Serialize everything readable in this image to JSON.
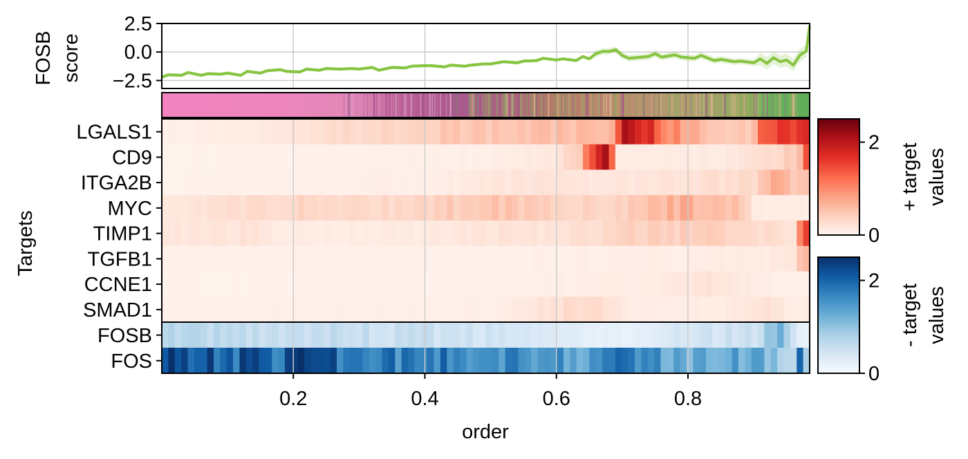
{
  "chart_data": {
    "type": "heatmap",
    "score_panel": {
      "type": "line",
      "ylabel_line1": "FOSB",
      "ylabel_line2": "score",
      "y_ticks": [
        "2.5",
        "0.0",
        "−2.5"
      ],
      "y_tick_values": [
        2.5,
        0.0,
        -2.5
      ],
      "ylim": [
        -3.2,
        2.5
      ],
      "xlim": [
        0.0,
        0.985
      ],
      "grid": true,
      "line_color": "#86c440",
      "points": [
        [
          0.0,
          -2.2
        ],
        [
          0.01,
          -2.0
        ],
        [
          0.03,
          -2.05
        ],
        [
          0.04,
          -1.8
        ],
        [
          0.06,
          -2.05
        ],
        [
          0.07,
          -1.9
        ],
        [
          0.09,
          -1.95
        ],
        [
          0.1,
          -1.85
        ],
        [
          0.12,
          -2.05
        ],
        [
          0.13,
          -1.7
        ],
        [
          0.15,
          -1.85
        ],
        [
          0.16,
          -1.65
        ],
        [
          0.18,
          -1.55
        ],
        [
          0.19,
          -1.7
        ],
        [
          0.21,
          -1.75
        ],
        [
          0.22,
          -1.5
        ],
        [
          0.24,
          -1.6
        ],
        [
          0.25,
          -1.45
        ],
        [
          0.27,
          -1.5
        ],
        [
          0.29,
          -1.45
        ],
        [
          0.3,
          -1.5
        ],
        [
          0.32,
          -1.35
        ],
        [
          0.33,
          -1.6
        ],
        [
          0.35,
          -1.35
        ],
        [
          0.37,
          -1.4
        ],
        [
          0.38,
          -1.25
        ],
        [
          0.4,
          -1.2
        ],
        [
          0.41,
          -1.2
        ],
        [
          0.43,
          -1.3
        ],
        [
          0.44,
          -1.15
        ],
        [
          0.46,
          -1.25
        ],
        [
          0.47,
          -1.15
        ],
        [
          0.49,
          -1.05
        ],
        [
          0.5,
          -1.05
        ],
        [
          0.52,
          -0.85
        ],
        [
          0.54,
          -0.95
        ],
        [
          0.55,
          -0.8
        ],
        [
          0.57,
          -0.75
        ],
        [
          0.58,
          -0.55
        ],
        [
          0.6,
          -0.7
        ],
        [
          0.61,
          -0.6
        ],
        [
          0.63,
          -0.75
        ],
        [
          0.64,
          -0.4
        ],
        [
          0.65,
          -0.6
        ],
        [
          0.66,
          -0.15
        ],
        [
          0.67,
          0.05
        ],
        [
          0.68,
          0.05
        ],
        [
          0.69,
          0.2
        ],
        [
          0.7,
          -0.3
        ],
        [
          0.71,
          -0.55
        ],
        [
          0.72,
          -0.5
        ],
        [
          0.74,
          -0.4
        ],
        [
          0.75,
          -0.15
        ],
        [
          0.76,
          -0.45
        ],
        [
          0.78,
          -0.25
        ],
        [
          0.79,
          -0.45
        ],
        [
          0.81,
          -0.55
        ],
        [
          0.82,
          -0.3
        ],
        [
          0.84,
          -0.75
        ],
        [
          0.85,
          -0.65
        ],
        [
          0.87,
          -0.85
        ],
        [
          0.88,
          -0.8
        ],
        [
          0.9,
          -0.95
        ],
        [
          0.91,
          -0.6
        ],
        [
          0.92,
          -1.0
        ],
        [
          0.93,
          -0.5
        ],
        [
          0.94,
          -0.85
        ],
        [
          0.95,
          -0.7
        ],
        [
          0.96,
          -1.15
        ],
        [
          0.97,
          -0.3
        ],
        [
          0.98,
          0.1
        ],
        [
          0.985,
          2.3
        ]
      ]
    },
    "color_strip": {
      "stops": [
        {
          "at": 0.0,
          "color": "#f384c0"
        },
        {
          "at": 0.18,
          "color": "#ee86bd"
        },
        {
          "at": 0.3,
          "color": "#e088b7"
        },
        {
          "at": 0.38,
          "color": "#b85c92"
        },
        {
          "at": 0.48,
          "color": "#a65a8a"
        },
        {
          "at": 0.6,
          "color": "#b27a6a"
        },
        {
          "at": 0.72,
          "color": "#c08a72"
        },
        {
          "at": 0.82,
          "color": "#a8a070"
        },
        {
          "at": 0.9,
          "color": "#95a85e"
        },
        {
          "at": 0.93,
          "color": "#6fb15f"
        },
        {
          "at": 1.0,
          "color": "#5fae5a"
        }
      ]
    },
    "heatmap": {
      "ylabel": "Targets",
      "xlabel": "order",
      "x_ticks": [
        "0.2",
        "0.4",
        "0.6",
        "0.8"
      ],
      "x_tick_values": [
        0.2,
        0.4,
        0.6,
        0.8
      ],
      "xlim": [
        0.0,
        0.985
      ],
      "grid": true,
      "positive_targets": [
        {
          "name": "LGALS1",
          "profile": [
            [
              0.0,
              0.05
            ],
            [
              0.15,
              0.12
            ],
            [
              0.28,
              0.3
            ],
            [
              0.4,
              0.45
            ],
            [
              0.55,
              0.5
            ],
            [
              0.62,
              0.6
            ],
            [
              0.68,
              0.45
            ],
            [
              0.7,
              1.9
            ],
            [
              0.74,
              1.7
            ],
            [
              0.76,
              1.2
            ],
            [
              0.8,
              0.7
            ],
            [
              0.86,
              0.5
            ],
            [
              0.9,
              0.45
            ],
            [
              0.92,
              1.6
            ],
            [
              0.95,
              1.5
            ],
            [
              0.97,
              1.9
            ],
            [
              0.985,
              2.0
            ]
          ]
        },
        {
          "name": "CD9",
          "profile": [
            [
              0.0,
              0.03
            ],
            [
              0.3,
              0.05
            ],
            [
              0.5,
              0.07
            ],
            [
              0.6,
              0.15
            ],
            [
              0.64,
              0.5
            ],
            [
              0.65,
              1.6
            ],
            [
              0.68,
              1.9
            ],
            [
              0.69,
              0.1
            ],
            [
              0.85,
              0.12
            ],
            [
              0.92,
              0.25
            ],
            [
              0.97,
              0.5
            ],
            [
              0.985,
              2.1
            ]
          ]
        },
        {
          "name": "ITGA2B",
          "profile": [
            [
              0.0,
              0.03
            ],
            [
              0.4,
              0.07
            ],
            [
              0.5,
              0.15
            ],
            [
              0.6,
              0.2
            ],
            [
              0.7,
              0.15
            ],
            [
              0.8,
              0.2
            ],
            [
              0.9,
              0.3
            ],
            [
              0.94,
              0.8
            ],
            [
              0.96,
              0.4
            ],
            [
              0.98,
              0.6
            ],
            [
              0.985,
              2.1
            ]
          ]
        },
        {
          "name": "MYC",
          "profile": [
            [
              0.0,
              0.15
            ],
            [
              0.12,
              0.25
            ],
            [
              0.2,
              0.35
            ],
            [
              0.3,
              0.3
            ],
            [
              0.4,
              0.35
            ],
            [
              0.5,
              0.55
            ],
            [
              0.6,
              0.4
            ],
            [
              0.7,
              0.35
            ],
            [
              0.78,
              0.7
            ],
            [
              0.84,
              0.55
            ],
            [
              0.88,
              0.6
            ],
            [
              0.9,
              0.1
            ],
            [
              0.985,
              0.1
            ]
          ]
        },
        {
          "name": "TIMP1",
          "profile": [
            [
              0.0,
              0.15
            ],
            [
              0.13,
              0.2
            ],
            [
              0.2,
              0.1
            ],
            [
              0.4,
              0.12
            ],
            [
              0.5,
              0.2
            ],
            [
              0.6,
              0.18
            ],
            [
              0.7,
              0.35
            ],
            [
              0.8,
              0.45
            ],
            [
              0.9,
              0.3
            ],
            [
              0.96,
              0.2
            ],
            [
              0.985,
              2.0
            ]
          ]
        },
        {
          "name": "TGFB1",
          "profile": [
            [
              0.0,
              0.05
            ],
            [
              0.5,
              0.05
            ],
            [
              0.8,
              0.08
            ],
            [
              0.9,
              0.12
            ],
            [
              0.96,
              0.15
            ],
            [
              0.97,
              0.5
            ],
            [
              0.985,
              0.55
            ]
          ]
        },
        {
          "name": "CCNE1",
          "profile": [
            [
              0.0,
              0.03
            ],
            [
              0.5,
              0.04
            ],
            [
              0.75,
              0.1
            ],
            [
              0.82,
              0.2
            ],
            [
              0.88,
              0.12
            ],
            [
              0.94,
              0.05
            ],
            [
              0.985,
              0.05
            ]
          ]
        },
        {
          "name": "SMAD1",
          "profile": [
            [
              0.0,
              0.05
            ],
            [
              0.5,
              0.06
            ],
            [
              0.64,
              0.3
            ],
            [
              0.68,
              0.25
            ],
            [
              0.72,
              0.08
            ],
            [
              0.85,
              0.1
            ],
            [
              0.92,
              0.2
            ],
            [
              0.96,
              0.1
            ],
            [
              0.985,
              0.1
            ]
          ]
        }
      ],
      "negative_targets": [
        {
          "name": "FOSB",
          "profile": [
            [
              0.0,
              0.65
            ],
            [
              0.3,
              0.55
            ],
            [
              0.5,
              0.45
            ],
            [
              0.6,
              0.3
            ],
            [
              0.7,
              0.2
            ],
            [
              0.8,
              0.4
            ],
            [
              0.9,
              0.5
            ],
            [
              0.94,
              1.2
            ],
            [
              0.96,
              0.4
            ],
            [
              0.985,
              0.1
            ]
          ]
        },
        {
          "name": "FOS",
          "profile": [
            [
              0.0,
              2.1
            ],
            [
              0.05,
              2.4
            ],
            [
              0.1,
              2.0
            ],
            [
              0.2,
              2.05
            ],
            [
              0.24,
              2.2
            ],
            [
              0.3,
              1.75
            ],
            [
              0.5,
              1.7
            ],
            [
              0.6,
              1.6
            ],
            [
              0.65,
              1.3
            ],
            [
              0.7,
              1.8
            ],
            [
              0.75,
              1.5
            ],
            [
              0.8,
              1.2
            ],
            [
              0.9,
              1.4
            ],
            [
              0.96,
              0.5
            ],
            [
              0.97,
              1.8
            ],
            [
              0.985,
              0.2
            ]
          ]
        }
      ]
    },
    "colorbar_positive": {
      "label_line1": "+ target",
      "label_line2": "values",
      "ticks": [
        "2",
        "0"
      ],
      "tick_values": [
        2,
        0
      ],
      "range": [
        0,
        2.5
      ],
      "colormap": [
        "#fff5f0",
        "#fdd0be",
        "#fca082",
        "#fb6a4a",
        "#e32f27",
        "#b11218",
        "#67000d"
      ]
    },
    "colorbar_negative": {
      "label_line1": "- target",
      "label_line2": "values",
      "ticks": [
        "2",
        "0"
      ],
      "tick_values": [
        2,
        0
      ],
      "range": [
        0,
        2.5
      ],
      "colormap": [
        "#f7fbff",
        "#d6e6f4",
        "#abd0e6",
        "#6aaed6",
        "#3787c0",
        "#105ba4",
        "#08306b"
      ]
    }
  }
}
